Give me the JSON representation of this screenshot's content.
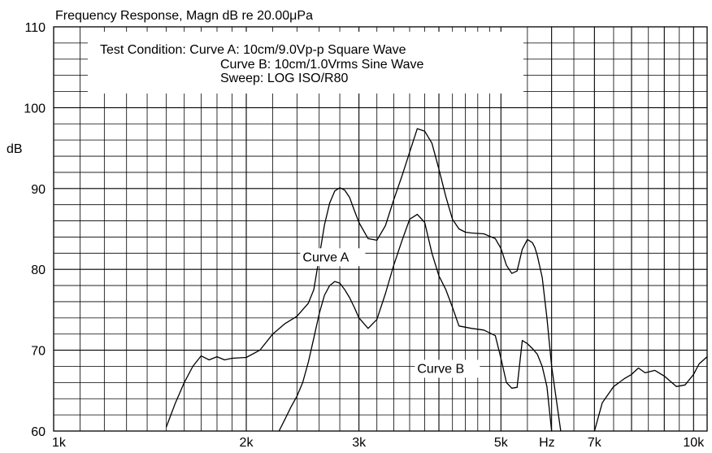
{
  "chart_data": {
    "type": "line",
    "title": "Frequency Response, Magn dB re 20.00μPa",
    "ylabel": "dB",
    "xlabel": "Hz",
    "xscale": "log",
    "xlim": [
      1000,
      10500
    ],
    "ylim": [
      60,
      110
    ],
    "grid": true,
    "x_ticks": [
      {
        "value": 1000,
        "label": "1k"
      },
      {
        "value": 2000,
        "label": "2k"
      },
      {
        "value": 3000,
        "label": "3k"
      },
      {
        "value": 5000,
        "label": "5k"
      },
      {
        "value": 7000,
        "label": "7k"
      },
      {
        "value": 10000,
        "label": "10k"
      }
    ],
    "y_ticks": [
      60,
      70,
      80,
      90,
      100,
      110
    ],
    "annotation": {
      "lines": [
        "Test Condition: Curve A: 10cm/9.0Vp-p Square Wave",
        "Curve B: 10cm/1.0Vrms Sine Wave",
        "Sweep: LOG ISO/R80"
      ]
    },
    "series": [
      {
        "name": "Curve A",
        "x": [
          1500,
          1550,
          1600,
          1650,
          1700,
          1750,
          1800,
          1850,
          1900,
          2000,
          2100,
          2200,
          2300,
          2400,
          2500,
          2550,
          2600,
          2650,
          2700,
          2750,
          2800,
          2850,
          2900,
          2950,
          3000,
          3100,
          3200,
          3300,
          3400,
          3500,
          3600,
          3700,
          3800,
          3900,
          4000,
          4100,
          4200,
          4300,
          4400,
          4500,
          4700,
          4900,
          5000,
          5100,
          5200,
          5300,
          5400,
          5500,
          5600,
          5650,
          5700,
          5800,
          5900,
          6000,
          6100,
          6200
        ],
        "y": [
          60.5,
          63.5,
          66,
          68,
          69.3,
          68.8,
          69.2,
          68.8,
          69,
          69.1,
          70,
          72,
          73.3,
          74.2,
          75.8,
          77.5,
          81.5,
          85.5,
          88.2,
          89.7,
          90.1,
          89.8,
          88.9,
          87.3,
          85.8,
          83.8,
          83.6,
          85.4,
          88.6,
          91.5,
          94.5,
          97.4,
          97.1,
          95.6,
          92.4,
          89,
          86.2,
          85,
          84.6,
          84.5,
          84.4,
          83.8,
          82.6,
          80.5,
          79.5,
          79.8,
          82.5,
          83.7,
          83.3,
          82.7,
          81.7,
          79,
          74,
          68,
          64,
          60
        ]
      },
      {
        "name": "Curve B",
        "x": [
          2250,
          2300,
          2350,
          2400,
          2450,
          2500,
          2550,
          2600,
          2650,
          2700,
          2750,
          2800,
          2850,
          2900,
          2950,
          3000,
          3100,
          3200,
          3300,
          3400,
          3500,
          3600,
          3700,
          3800,
          3900,
          4000,
          4100,
          4200,
          4300,
          4500,
          4700,
          4900,
          5000,
          5100,
          5200,
          5300,
          5400,
          5500,
          5600,
          5700,
          5800,
          5900,
          6000
        ],
        "y": [
          60,
          61.5,
          63,
          64.3,
          66,
          68.5,
          71.5,
          74.5,
          76.8,
          78,
          78.5,
          78.3,
          77.5,
          76.5,
          75.3,
          74,
          72.7,
          73.8,
          77,
          80.5,
          83.5,
          86.2,
          86.8,
          85.8,
          82,
          79.2,
          77.5,
          75.3,
          73,
          72.7,
          72.5,
          71.8,
          69,
          66,
          65.3,
          65.4,
          71.2,
          70.8,
          70.2,
          69.5,
          68,
          65.5,
          60
        ]
      },
      {
        "name": "",
        "x": [
          7000,
          7200,
          7500,
          7800,
          8000,
          8200,
          8400,
          8700,
          9000,
          9400,
          9700,
          10000,
          10200,
          10500
        ],
        "y": [
          60,
          63.5,
          65.5,
          66.5,
          67,
          67.8,
          67.2,
          67.5,
          66.8,
          65.5,
          65.7,
          67,
          68.3,
          69.2
        ]
      }
    ],
    "curve_labels": [
      {
        "text": "Curve A",
        "x": 2450,
        "y": 81
      },
      {
        "text": "Curve B",
        "x": 3700,
        "y": 67.2
      }
    ]
  }
}
